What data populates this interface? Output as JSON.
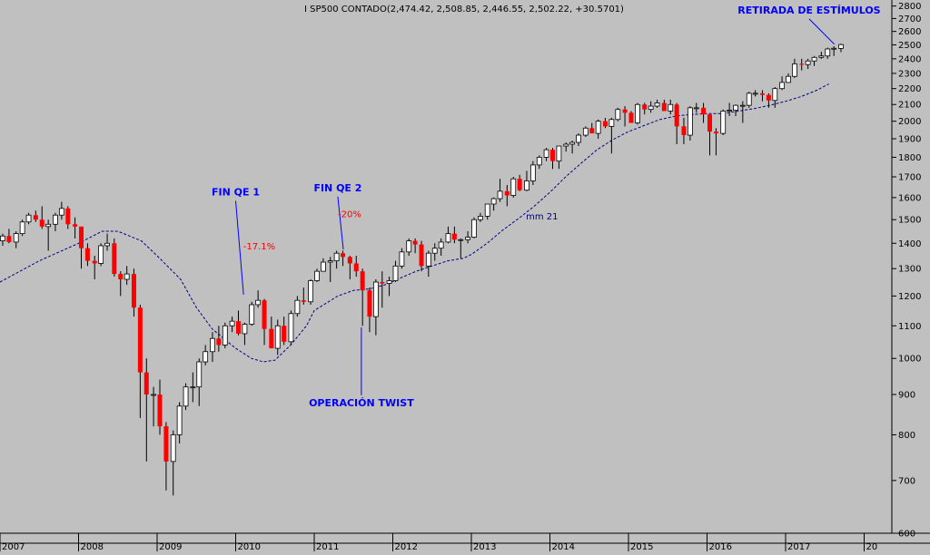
{
  "chart_data": {
    "type": "candlestick",
    "title": "I SP500 CONTADO(2,474.42, 2,508.85, 2,446.55, 2,502.22, +30.5701)",
    "y_scale": "log",
    "ylim": [
      600,
      2850
    ],
    "y_ticks": [
      600,
      700,
      800,
      900,
      1000,
      1100,
      1200,
      1300,
      1400,
      1500,
      1600,
      1700,
      1800,
      1900,
      2000,
      2100,
      2200,
      2300,
      2400,
      2500,
      2600,
      2700,
      2800
    ],
    "x_ticks": [
      "2007",
      "2008",
      "2009",
      "2010",
      "2011",
      "2012",
      "2013",
      "2014",
      "2015",
      "2016",
      "2017",
      "20"
    ],
    "x_start_year": 2007,
    "candles": [
      [
        2007.0,
        1410,
        1440,
        1390,
        1430
      ],
      [
        2007.08,
        1430,
        1460,
        1400,
        1405
      ],
      [
        2007.17,
        1405,
        1450,
        1380,
        1440
      ],
      [
        2007.25,
        1440,
        1500,
        1430,
        1490
      ],
      [
        2007.33,
        1490,
        1530,
        1480,
        1520
      ],
      [
        2007.42,
        1520,
        1540,
        1490,
        1500
      ],
      [
        2007.5,
        1500,
        1560,
        1460,
        1470
      ],
      [
        2007.58,
        1470,
        1500,
        1370,
        1480
      ],
      [
        2007.67,
        1480,
        1530,
        1450,
        1520
      ],
      [
        2007.75,
        1520,
        1580,
        1500,
        1550
      ],
      [
        2007.83,
        1550,
        1560,
        1460,
        1480
      ],
      [
        2007.92,
        1480,
        1510,
        1420,
        1470
      ],
      [
        2008.0,
        1470,
        1470,
        1300,
        1380
      ],
      [
        2008.08,
        1380,
        1400,
        1310,
        1330
      ],
      [
        2008.17,
        1330,
        1350,
        1260,
        1320
      ],
      [
        2008.25,
        1320,
        1400,
        1310,
        1390
      ],
      [
        2008.33,
        1390,
        1440,
        1370,
        1400
      ],
      [
        2008.42,
        1400,
        1420,
        1270,
        1280
      ],
      [
        2008.5,
        1280,
        1290,
        1200,
        1260
      ],
      [
        2008.58,
        1260,
        1310,
        1240,
        1280
      ],
      [
        2008.67,
        1280,
        1300,
        1130,
        1160
      ],
      [
        2008.75,
        1160,
        1170,
        840,
        960
      ],
      [
        2008.83,
        960,
        1000,
        740,
        900
      ],
      [
        2008.92,
        900,
        920,
        820,
        900
      ],
      [
        2009.0,
        900,
        940,
        800,
        820
      ],
      [
        2009.08,
        820,
        830,
        680,
        740
      ],
      [
        2009.17,
        740,
        810,
        670,
        800
      ],
      [
        2009.25,
        800,
        880,
        780,
        870
      ],
      [
        2009.33,
        870,
        930,
        860,
        920
      ],
      [
        2009.42,
        920,
        960,
        880,
        920
      ],
      [
        2009.5,
        920,
        1000,
        870,
        990
      ],
      [
        2009.58,
        990,
        1040,
        980,
        1020
      ],
      [
        2009.67,
        1020,
        1080,
        990,
        1060
      ],
      [
        2009.75,
        1060,
        1100,
        1020,
        1040
      ],
      [
        2009.83,
        1040,
        1110,
        1030,
        1100
      ],
      [
        2009.92,
        1100,
        1130,
        1080,
        1115
      ],
      [
        2010.0,
        1115,
        1150,
        1070,
        1075
      ],
      [
        2010.08,
        1075,
        1110,
        1040,
        1105
      ],
      [
        2010.17,
        1105,
        1180,
        1100,
        1170
      ],
      [
        2010.25,
        1170,
        1220,
        1160,
        1185
      ],
      [
        2010.33,
        1185,
        1190,
        1040,
        1090
      ],
      [
        2010.42,
        1090,
        1130,
        1030,
        1030
      ],
      [
        2010.5,
        1030,
        1120,
        1010,
        1100
      ],
      [
        2010.58,
        1100,
        1130,
        1040,
        1050
      ],
      [
        2010.67,
        1050,
        1150,
        1040,
        1140
      ],
      [
        2010.75,
        1140,
        1200,
        1130,
        1185
      ],
      [
        2010.83,
        1185,
        1230,
        1170,
        1180
      ],
      [
        2010.92,
        1180,
        1260,
        1170,
        1255
      ],
      [
        2011.0,
        1255,
        1300,
        1250,
        1290
      ],
      [
        2011.08,
        1290,
        1340,
        1290,
        1325
      ],
      [
        2011.17,
        1325,
        1345,
        1250,
        1330
      ],
      [
        2011.25,
        1330,
        1370,
        1300,
        1360
      ],
      [
        2011.33,
        1360,
        1370,
        1310,
        1345
      ],
      [
        2011.42,
        1345,
        1350,
        1260,
        1320
      ],
      [
        2011.5,
        1320,
        1350,
        1270,
        1290
      ],
      [
        2011.58,
        1290,
        1300,
        1100,
        1220
      ],
      [
        2011.67,
        1220,
        1230,
        1080,
        1130
      ],
      [
        2011.75,
        1130,
        1260,
        1070,
        1250
      ],
      [
        2011.83,
        1250,
        1290,
        1160,
        1245
      ],
      [
        2011.92,
        1245,
        1270,
        1200,
        1255
      ],
      [
        2012.0,
        1255,
        1330,
        1250,
        1310
      ],
      [
        2012.08,
        1310,
        1380,
        1300,
        1365
      ],
      [
        2012.17,
        1365,
        1420,
        1350,
        1410
      ],
      [
        2012.25,
        1410,
        1420,
        1360,
        1395
      ],
      [
        2012.33,
        1395,
        1410,
        1290,
        1310
      ],
      [
        2012.42,
        1310,
        1370,
        1270,
        1360
      ],
      [
        2012.5,
        1360,
        1400,
        1330,
        1380
      ],
      [
        2012.58,
        1380,
        1420,
        1350,
        1405
      ],
      [
        2012.67,
        1405,
        1470,
        1400,
        1440
      ],
      [
        2012.75,
        1440,
        1470,
        1400,
        1415
      ],
      [
        2012.83,
        1415,
        1420,
        1340,
        1415
      ],
      [
        2012.92,
        1415,
        1450,
        1400,
        1425
      ],
      [
        2013.0,
        1425,
        1510,
        1420,
        1500
      ],
      [
        2013.08,
        1500,
        1530,
        1490,
        1515
      ],
      [
        2013.17,
        1515,
        1570,
        1500,
        1570
      ],
      [
        2013.25,
        1570,
        1600,
        1540,
        1595
      ],
      [
        2013.33,
        1595,
        1690,
        1580,
        1630
      ],
      [
        2013.42,
        1630,
        1660,
        1560,
        1610
      ],
      [
        2013.5,
        1610,
        1700,
        1600,
        1690
      ],
      [
        2013.58,
        1690,
        1710,
        1630,
        1635
      ],
      [
        2013.67,
        1635,
        1730,
        1630,
        1680
      ],
      [
        2013.75,
        1680,
        1780,
        1660,
        1760
      ],
      [
        2013.83,
        1760,
        1810,
        1740,
        1800
      ],
      [
        2013.92,
        1800,
        1850,
        1780,
        1840
      ],
      [
        2014.0,
        1840,
        1850,
        1740,
        1780
      ],
      [
        2014.08,
        1780,
        1860,
        1740,
        1860
      ],
      [
        2014.17,
        1860,
        1880,
        1830,
        1870
      ],
      [
        2014.25,
        1870,
        1890,
        1820,
        1880
      ],
      [
        2014.33,
        1880,
        1930,
        1860,
        1920
      ],
      [
        2014.42,
        1920,
        1970,
        1910,
        1960
      ],
      [
        2014.5,
        1960,
        1990,
        1940,
        1930
      ],
      [
        2014.58,
        1930,
        2010,
        1900,
        2000
      ],
      [
        2014.67,
        2000,
        2020,
        1960,
        1970
      ],
      [
        2014.75,
        1970,
        2020,
        1820,
        2010
      ],
      [
        2014.83,
        2010,
        2080,
        2000,
        2070
      ],
      [
        2014.92,
        2070,
        2090,
        1970,
        2050
      ],
      [
        2015.0,
        2050,
        2060,
        1990,
        1990
      ],
      [
        2015.08,
        1990,
        2110,
        1980,
        2100
      ],
      [
        2015.17,
        2100,
        2110,
        2040,
        2070
      ],
      [
        2015.25,
        2070,
        2120,
        2050,
        2090
      ],
      [
        2015.33,
        2090,
        2130,
        2080,
        2110
      ],
      [
        2015.42,
        2110,
        2130,
        2060,
        2060
      ],
      [
        2015.5,
        2060,
        2130,
        2040,
        2100
      ],
      [
        2015.58,
        2100,
        2110,
        1870,
        1970
      ],
      [
        2015.67,
        1970,
        2020,
        1870,
        1920
      ],
      [
        2015.75,
        1920,
        2090,
        1890,
        2080
      ],
      [
        2015.83,
        2080,
        2110,
        2050,
        2080
      ],
      [
        2015.92,
        2080,
        2110,
        1990,
        2040
      ],
      [
        2016.0,
        2040,
        2040,
        1810,
        1940
      ],
      [
        2016.08,
        1940,
        1960,
        1810,
        1930
      ],
      [
        2016.17,
        1930,
        2070,
        1920,
        2060
      ],
      [
        2016.25,
        2060,
        2110,
        2030,
        2065
      ],
      [
        2016.33,
        2065,
        2100,
        2030,
        2095
      ],
      [
        2016.42,
        2095,
        2120,
        1990,
        2095
      ],
      [
        2016.5,
        2095,
        2180,
        2080,
        2170
      ],
      [
        2016.58,
        2170,
        2190,
        2150,
        2170
      ],
      [
        2016.67,
        2170,
        2190,
        2120,
        2160
      ],
      [
        2016.75,
        2160,
        2170,
        2080,
        2125
      ],
      [
        2016.83,
        2125,
        2210,
        2080,
        2200
      ],
      [
        2016.92,
        2200,
        2280,
        2190,
        2240
      ],
      [
        2017.0,
        2240,
        2300,
        2240,
        2280
      ],
      [
        2017.08,
        2280,
        2400,
        2270,
        2365
      ],
      [
        2017.17,
        2365,
        2400,
        2320,
        2360
      ],
      [
        2017.25,
        2360,
        2400,
        2330,
        2385
      ],
      [
        2017.33,
        2385,
        2420,
        2350,
        2410
      ],
      [
        2017.42,
        2410,
        2450,
        2400,
        2420
      ],
      [
        2017.5,
        2420,
        2480,
        2400,
        2470
      ],
      [
        2017.58,
        2470,
        2490,
        2420,
        2475
      ],
      [
        2017.67,
        2474,
        2509,
        2447,
        2502
      ]
    ],
    "moving_average": {
      "name": "mm 21",
      "points": [
        [
          2007.0,
          1250
        ],
        [
          2007.5,
          1330
        ],
        [
          2008.0,
          1400
        ],
        [
          2008.3,
          1450
        ],
        [
          2008.5,
          1450
        ],
        [
          2008.8,
          1410
        ],
        [
          2009.0,
          1350
        ],
        [
          2009.3,
          1260
        ],
        [
          2009.5,
          1160
        ],
        [
          2009.7,
          1090
        ],
        [
          2010.0,
          1030
        ],
        [
          2010.2,
          1000
        ],
        [
          2010.35,
          990
        ],
        [
          2010.5,
          995
        ],
        [
          2010.7,
          1040
        ],
        [
          2010.9,
          1100
        ],
        [
          2011.0,
          1150
        ],
        [
          2011.3,
          1200
        ],
        [
          2011.5,
          1220
        ],
        [
          2011.7,
          1225
        ],
        [
          2011.9,
          1240
        ],
        [
          2012.1,
          1265
        ],
        [
          2012.3,
          1290
        ],
        [
          2012.5,
          1310
        ],
        [
          2012.7,
          1330
        ],
        [
          2012.9,
          1340
        ],
        [
          2013.0,
          1355
        ],
        [
          2013.2,
          1400
        ],
        [
          2013.4,
          1455
        ],
        [
          2013.6,
          1505
        ],
        [
          2013.8,
          1560
        ],
        [
          2014.0,
          1625
        ],
        [
          2014.2,
          1700
        ],
        [
          2014.4,
          1770
        ],
        [
          2014.6,
          1840
        ],
        [
          2014.8,
          1895
        ],
        [
          2015.0,
          1940
        ],
        [
          2015.2,
          1975
        ],
        [
          2015.4,
          2010
        ],
        [
          2015.6,
          2030
        ],
        [
          2015.8,
          2040
        ],
        [
          2016.0,
          2045
        ],
        [
          2016.2,
          2045
        ],
        [
          2016.4,
          2060
        ],
        [
          2016.6,
          2075
        ],
        [
          2016.8,
          2095
        ],
        [
          2017.0,
          2120
        ],
        [
          2017.2,
          2150
        ],
        [
          2017.4,
          2190
        ],
        [
          2017.55,
          2230
        ]
      ]
    },
    "annotations": [
      {
        "text": "FIN QE 1",
        "color": "#0000ff",
        "x": 2010.0,
        "y": 1610,
        "arrow_to": [
          2010.1,
          1205
        ]
      },
      {
        "text": "FIN QE 2",
        "color": "#0000ff",
        "x": 2011.3,
        "y": 1630,
        "arrow_to": [
          2011.37,
          1375
        ]
      },
      {
        "text": "-17.1%",
        "color": "#ff0000",
        "x": 2010.3,
        "y": 1375
      },
      {
        "text": "-20%",
        "color": "#ff0000",
        "x": 2011.45,
        "y": 1510
      },
      {
        "text": "OPERACIÓN TWIST",
        "color": "#0000ff",
        "x": 2011.6,
        "y": 870,
        "arrow_to": [
          2011.6,
          1095
        ]
      },
      {
        "text": "RETIRADA DE ESTÍMULOS",
        "color": "#0000ff",
        "x": 2017.3,
        "y": 2740,
        "arrow_to": [
          2017.62,
          2505
        ]
      },
      {
        "text": "mm 21",
        "color": "#000080",
        "x": 2013.9,
        "y": 1500
      }
    ],
    "colors": {
      "up": "#ffffff",
      "down": "#ff0000",
      "wick": "#000000",
      "ma": "#000080",
      "background": "#c0c0c0"
    },
    "grid": false
  }
}
